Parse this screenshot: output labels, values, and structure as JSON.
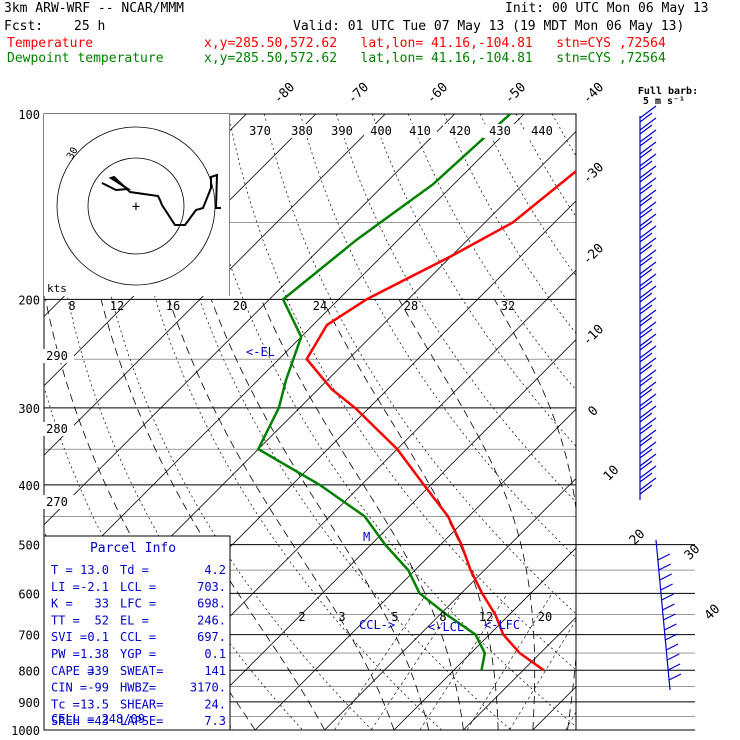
{
  "header": {
    "model": "3km ARW-WRF -- NCAR/MMM",
    "init": "Init: 00 UTC Mon 06 May 13",
    "fcst_label": "Fcst:",
    "fcst_value": "25 h",
    "valid": "Valid: 01 UTC Tue 07 May 13 (19 MDT Mon 06 May 13)",
    "temp_label": "Temperature",
    "temp_loc": "x,y=285.50,572.62   lat,lon= 41.16,-104.81   stn=CYS ,72564",
    "dew_label": "Dewpoint temperature",
    "dew_loc": "x,y=285.50,572.62   lat,lon= 41.16,-104.81   stn=CYS ,72564"
  },
  "colors": {
    "temperature": "#ff0000",
    "dewpoint": "#008000",
    "header_red": "#ff0000",
    "header_green": "#008000",
    "wind": "#0000cc",
    "parcel_text": "#0000cc"
  },
  "chart_data": {
    "type": "line",
    "y_scale": "log-pressure",
    "ylabel": "",
    "pressure_ticks": [
      100,
      200,
      300,
      400,
      500,
      600,
      700,
      800,
      900,
      1000
    ],
    "skew_temp_labels": [
      -80,
      -70,
      -60,
      -50,
      -40,
      -30,
      -20,
      -10,
      0,
      10,
      20,
      30,
      40
    ],
    "theta_labels": [
      370,
      380,
      390,
      400,
      410,
      420,
      430,
      440,
      290,
      280,
      270
    ],
    "mixing_ratio_labels": [
      2,
      3,
      5,
      8,
      12,
      20
    ],
    "hodograph": {
      "unit": "kts",
      "ring_labels": [
        8,
        12,
        16,
        20,
        24,
        28,
        32
      ],
      "ring_30": "30"
    },
    "series": [
      {
        "name": "Temperature",
        "points": [
          [
            100,
            -56
          ],
          [
            120,
            -54
          ],
          [
            150,
            -56
          ],
          [
            170,
            -60
          ],
          [
            200,
            -66
          ],
          [
            220,
            -68
          ],
          [
            250,
            -66
          ],
          [
            280,
            -58
          ],
          [
            300,
            -52
          ],
          [
            350,
            -40
          ],
          [
            400,
            -31
          ],
          [
            450,
            -23
          ],
          [
            500,
            -17
          ],
          [
            550,
            -12
          ],
          [
            600,
            -7
          ],
          [
            650,
            -2
          ],
          [
            700,
            2
          ],
          [
            750,
            7
          ],
          [
            800,
            13
          ]
        ]
      },
      {
        "name": "Dewpoint temperature",
        "points": [
          [
            100,
            -72
          ],
          [
            130,
            -73
          ],
          [
            160,
            -76
          ],
          [
            200,
            -78
          ],
          [
            230,
            -70
          ],
          [
            270,
            -66
          ],
          [
            300,
            -63
          ],
          [
            350,
            -60
          ],
          [
            400,
            -46
          ],
          [
            450,
            -35
          ],
          [
            500,
            -28
          ],
          [
            550,
            -21
          ],
          [
            600,
            -16
          ],
          [
            650,
            -9
          ],
          [
            700,
            -2
          ],
          [
            750,
            2
          ],
          [
            800,
            4
          ]
        ]
      }
    ],
    "annotations": {
      "el": "<-EL",
      "m": "M",
      "ccl": "CCL->",
      "lcl": "<-LCL",
      "lfc": "<-LFC"
    },
    "wind_barb_legend": {
      "title": "Full barb:",
      "value": "5 m s⁻¹"
    }
  },
  "parcel_info": {
    "title": "Parcel Info",
    "rows": [
      [
        "T  =",
        "13.0",
        "Td  =",
        "4.2"
      ],
      [
        "LI =",
        "-2.1",
        "LCL =",
        "703."
      ],
      [
        "K  =",
        "33",
        "LFC =",
        "698."
      ],
      [
        "TT =",
        "52",
        "EL  =",
        "246."
      ],
      [
        "SVI =",
        "0.1",
        "CCL =",
        "697."
      ],
      [
        "PW =",
        "1.38",
        "YGP =",
        "0.1"
      ],
      [
        "CAPE =",
        "339",
        "SWEAT=",
        "141"
      ],
      [
        "CIN =",
        "-99",
        "HWBZ=",
        "3170."
      ],
      [
        "Tc =",
        "13.5",
        "SHEAR=",
        "24."
      ],
      [
        "SREH =",
        "43",
        "LAPSE=",
        "7.3"
      ]
    ],
    "cell": "CELL = 248/09"
  }
}
